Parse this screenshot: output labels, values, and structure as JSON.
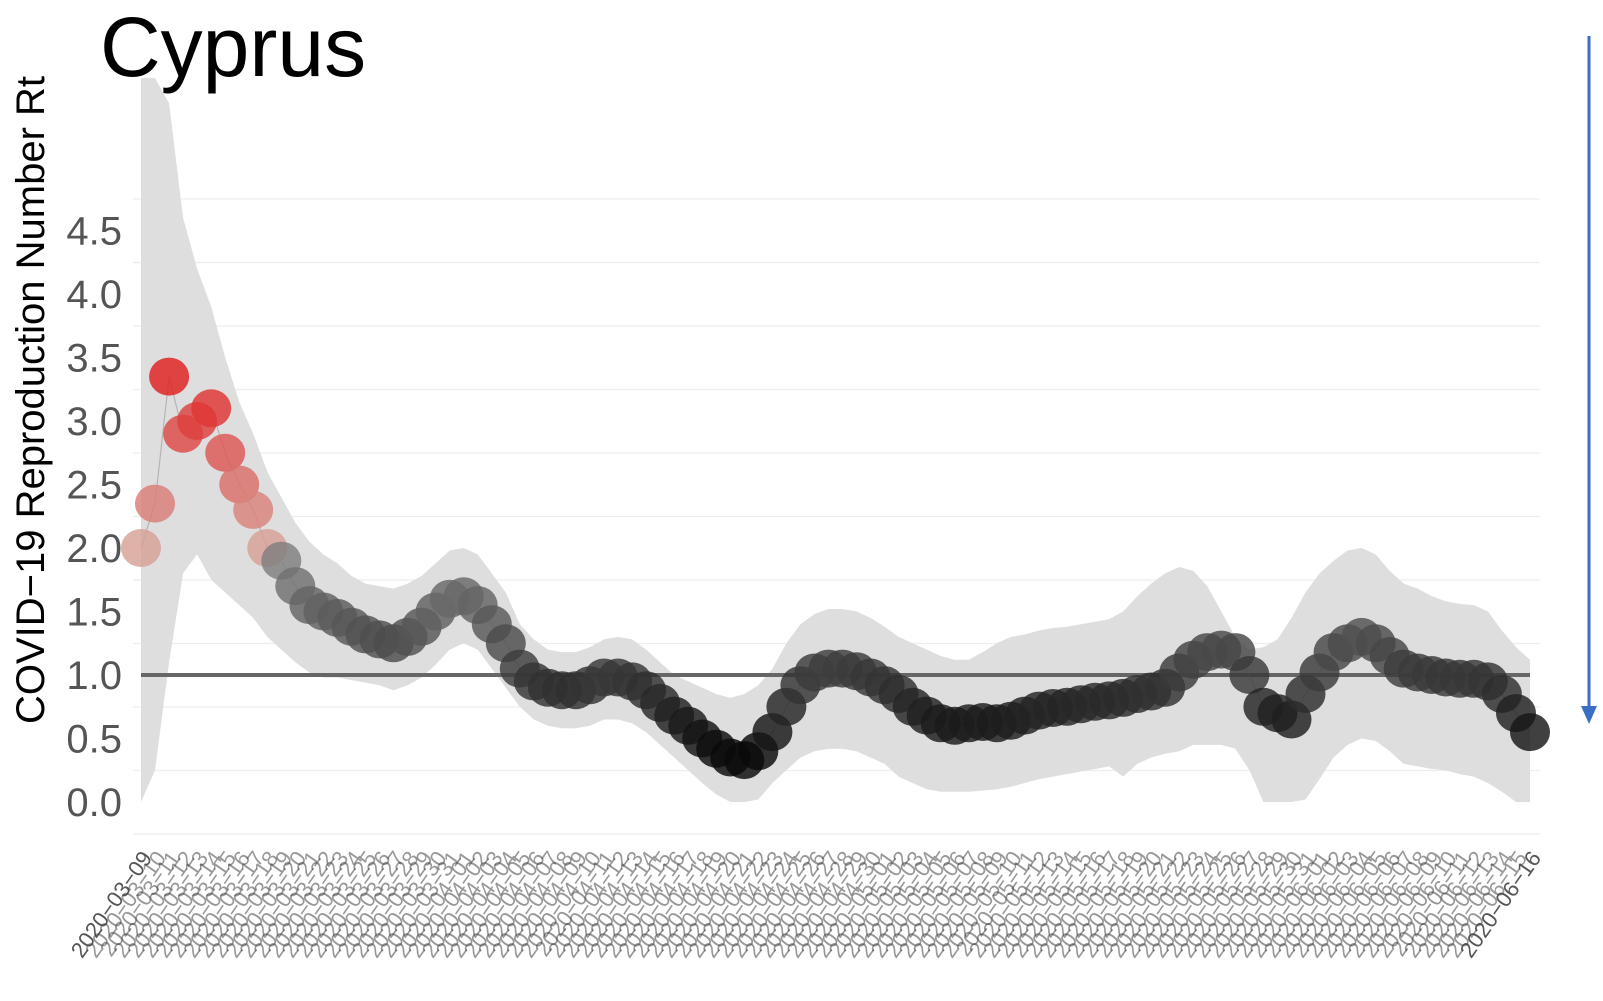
{
  "chart_data": {
    "type": "scatter",
    "title": "Cyprus",
    "xlabel": "",
    "ylabel": "COVID−19 Reproduction Number Rt",
    "ylim": [
      0,
      5.5
    ],
    "yticks": [
      "0.0",
      "0.5",
      "1.0",
      "1.5",
      "2.0",
      "2.5",
      "3.0",
      "3.5",
      "4.0",
      "4.5"
    ],
    "grid": true,
    "reference_line": 1.0,
    "x_start_label": "2020−03−09",
    "x_end_label": "2020−06−16",
    "x": [
      "2020-03-09",
      "2020-03-10",
      "2020-03-11",
      "2020-03-12",
      "2020-03-13",
      "2020-03-14",
      "2020-03-15",
      "2020-03-16",
      "2020-03-17",
      "2020-03-18",
      "2020-03-19",
      "2020-03-20",
      "2020-03-21",
      "2020-03-22",
      "2020-03-23",
      "2020-03-24",
      "2020-03-25",
      "2020-03-26",
      "2020-03-27",
      "2020-03-28",
      "2020-03-29",
      "2020-03-30",
      "2020-03-31",
      "2020-04-01",
      "2020-04-02",
      "2020-04-03",
      "2020-04-04",
      "2020-04-05",
      "2020-04-06",
      "2020-04-07",
      "2020-04-08",
      "2020-04-09",
      "2020-04-10",
      "2020-04-11",
      "2020-04-12",
      "2020-04-13",
      "2020-04-14",
      "2020-04-15",
      "2020-04-16",
      "2020-04-17",
      "2020-04-18",
      "2020-04-19",
      "2020-04-20",
      "2020-04-21",
      "2020-04-22",
      "2020-04-23",
      "2020-04-24",
      "2020-04-25",
      "2020-04-26",
      "2020-04-27",
      "2020-04-28",
      "2020-04-29",
      "2020-04-30",
      "2020-05-01",
      "2020-05-02",
      "2020-05-03",
      "2020-05-04",
      "2020-05-05",
      "2020-05-06",
      "2020-05-07",
      "2020-05-08",
      "2020-05-09",
      "2020-05-10",
      "2020-05-11",
      "2020-05-12",
      "2020-05-13",
      "2020-05-14",
      "2020-05-15",
      "2020-05-16",
      "2020-05-17",
      "2020-05-18",
      "2020-05-19",
      "2020-05-20",
      "2020-05-21",
      "2020-05-22",
      "2020-05-23",
      "2020-05-24",
      "2020-05-25",
      "2020-05-26",
      "2020-05-27",
      "2020-05-28",
      "2020-05-29",
      "2020-05-30",
      "2020-05-31",
      "2020-06-01",
      "2020-06-02",
      "2020-06-03",
      "2020-06-04",
      "2020-06-05",
      "2020-06-06",
      "2020-06-07",
      "2020-06-08",
      "2020-06-09",
      "2020-06-10",
      "2020-06-11",
      "2020-06-12",
      "2020-06-13",
      "2020-06-14",
      "2020-06-15",
      "2020-06-16"
    ],
    "series": [
      {
        "values": [
          2.0,
          2.35,
          3.35,
          2.9,
          3.0,
          3.1,
          2.75,
          2.5,
          2.3,
          2.0,
          1.9,
          1.7,
          1.55,
          1.5,
          1.45,
          1.38,
          1.32,
          1.28,
          1.25,
          1.3,
          1.38,
          1.5,
          1.6,
          1.62,
          1.55,
          1.4,
          1.25,
          1.05,
          0.95,
          0.9,
          0.88,
          0.88,
          0.92,
          0.98,
          0.98,
          0.95,
          0.88,
          0.78,
          0.68,
          0.6,
          0.5,
          0.42,
          0.35,
          0.33,
          0.4,
          0.55,
          0.75,
          0.92,
          1.02,
          1.05,
          1.05,
          1.03,
          0.98,
          0.92,
          0.85,
          0.75,
          0.68,
          0.62,
          0.6,
          0.62,
          0.63,
          0.62,
          0.64,
          0.68,
          0.72,
          0.74,
          0.75,
          0.77,
          0.79,
          0.8,
          0.82,
          0.85,
          0.87,
          0.9,
          1.02,
          1.12,
          1.18,
          1.2,
          1.18,
          1.0,
          0.75,
          0.7,
          0.65,
          0.85,
          1.02,
          1.18,
          1.25,
          1.3,
          1.25,
          1.15,
          1.05,
          1.02,
          1.0,
          0.98,
          0.97,
          0.97,
          0.95,
          0.85,
          0.7,
          0.55
        ],
        "ci_lower": [
          0.0,
          0.25,
          1.1,
          1.8,
          1.95,
          1.75,
          1.65,
          1.55,
          1.45,
          1.3,
          1.2,
          1.1,
          1.02,
          0.98,
          0.98,
          0.96,
          0.94,
          0.92,
          0.88,
          0.92,
          0.98,
          1.08,
          1.2,
          1.25,
          1.2,
          1.05,
          0.9,
          0.75,
          0.65,
          0.6,
          0.58,
          0.58,
          0.6,
          0.65,
          0.65,
          0.62,
          0.55,
          0.45,
          0.35,
          0.25,
          0.15,
          0.06,
          0.0,
          0.0,
          0.02,
          0.15,
          0.25,
          0.35,
          0.4,
          0.42,
          0.42,
          0.4,
          0.35,
          0.3,
          0.2,
          0.15,
          0.1,
          0.08,
          0.08,
          0.08,
          0.09,
          0.1,
          0.12,
          0.15,
          0.18,
          0.2,
          0.22,
          0.24,
          0.26,
          0.28,
          0.2,
          0.3,
          0.35,
          0.38,
          0.4,
          0.45,
          0.45,
          0.45,
          0.42,
          0.25,
          0.0,
          0.0,
          0.0,
          0.02,
          0.18,
          0.35,
          0.45,
          0.5,
          0.48,
          0.4,
          0.3,
          0.28,
          0.26,
          0.25,
          0.22,
          0.2,
          0.15,
          0.08,
          0.0,
          0.0
        ],
        "ci_upper": [
          5.7,
          5.7,
          5.5,
          4.6,
          4.2,
          3.9,
          3.5,
          3.15,
          2.9,
          2.6,
          2.4,
          2.2,
          2.05,
          1.95,
          1.88,
          1.78,
          1.72,
          1.7,
          1.68,
          1.72,
          1.78,
          1.88,
          1.98,
          2.0,
          1.95,
          1.8,
          1.65,
          1.4,
          1.28,
          1.2,
          1.18,
          1.18,
          1.22,
          1.28,
          1.3,
          1.28,
          1.2,
          1.1,
          1.0,
          0.95,
          0.9,
          0.85,
          0.82,
          0.85,
          0.92,
          1.05,
          1.25,
          1.4,
          1.48,
          1.52,
          1.52,
          1.5,
          1.45,
          1.38,
          1.3,
          1.25,
          1.2,
          1.15,
          1.12,
          1.12,
          1.18,
          1.25,
          1.3,
          1.32,
          1.35,
          1.37,
          1.38,
          1.4,
          1.42,
          1.44,
          1.5,
          1.62,
          1.72,
          1.8,
          1.85,
          1.82,
          1.7,
          1.5,
          1.3,
          1.2,
          1.22,
          1.28,
          1.45,
          1.65,
          1.8,
          1.9,
          1.98,
          2.0,
          1.95,
          1.82,
          1.72,
          1.68,
          1.62,
          1.58,
          1.56,
          1.55,
          1.5,
          1.35,
          1.22,
          1.12
        ]
      }
    ]
  },
  "arrow_color": "#3b6fc4"
}
